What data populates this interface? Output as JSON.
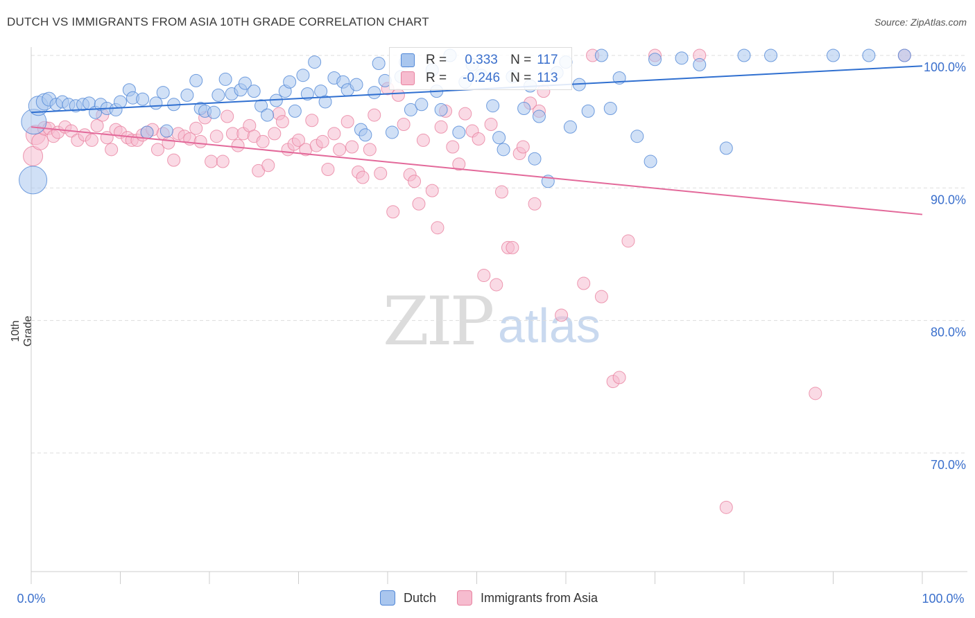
{
  "header": {
    "title": "DUTCH VS IMMIGRANTS FROM ASIA 10TH GRADE CORRELATION CHART",
    "source": "Source: ZipAtlas.com"
  },
  "legend": {
    "rows": [
      {
        "r_label": "R =",
        "r_value": "0.333",
        "n_label": "N =",
        "n_value": "117"
      },
      {
        "r_label": "R =",
        "r_value": "-0.246",
        "n_label": "N =",
        "n_value": "113"
      }
    ]
  },
  "bottom_legend": {
    "dutch": "Dutch",
    "asia": "Immigrants from Asia"
  },
  "watermark": {
    "zip": "ZIP",
    "atlas": "atlas"
  },
  "colors": {
    "dutch_fill": "#a9c6ee",
    "dutch_stroke": "#4f86d6",
    "dutch_line": "#2f6fd0",
    "asia_fill": "#f6bccf",
    "asia_stroke": "#e8819f",
    "asia_line": "#e3699a",
    "tick_label": "#3a6fcc",
    "grid": "#dddddd"
  },
  "chart_data": {
    "type": "scatter",
    "title": "DUTCH VS IMMIGRANTS FROM ASIA 10TH GRADE CORRELATION CHART",
    "ylabel": "10th Grade",
    "xlabel": "",
    "xlim": [
      0,
      100
    ],
    "ylim": [
      60.5,
      101.5
    ],
    "x_ticks": [
      "0.0%",
      "100.0%"
    ],
    "y_ticks": [
      {
        "value": 100,
        "label": "100.0%"
      },
      {
        "value": 90,
        "label": "90.0%"
      },
      {
        "value": 80,
        "label": "80.0%"
      },
      {
        "value": 70,
        "label": "70.0%"
      }
    ],
    "grid": true,
    "series": [
      {
        "name": "Dutch",
        "R": 0.333,
        "N": 117,
        "trend": [
          [
            0,
            95.7
          ],
          [
            100,
            99.2
          ]
        ],
        "points": [
          [
            0.3,
            95.0,
            18
          ],
          [
            0.2,
            90.6,
            20
          ],
          [
            0.8,
            96.2,
            14
          ],
          [
            1.5,
            96.5,
            12
          ],
          [
            2.0,
            96.7,
            10
          ],
          [
            2.8,
            96.3,
            9
          ],
          [
            3.5,
            96.5,
            9
          ],
          [
            4.2,
            96.3,
            9
          ],
          [
            5.0,
            96.2,
            9
          ],
          [
            5.8,
            96.3,
            9
          ],
          [
            6.5,
            96.4,
            9
          ],
          [
            7.2,
            95.7,
            9
          ],
          [
            7.8,
            96.3,
            9
          ],
          [
            8.5,
            96.0,
            9
          ],
          [
            9.5,
            95.9,
            9
          ],
          [
            10.0,
            96.5,
            9
          ],
          [
            11.0,
            97.4,
            9
          ],
          [
            11.4,
            96.8,
            9
          ],
          [
            12.5,
            96.7,
            9
          ],
          [
            13.0,
            94.2,
            9
          ],
          [
            14.0,
            96.4,
            9
          ],
          [
            14.8,
            97.2,
            9
          ],
          [
            15.2,
            94.3,
            9
          ],
          [
            16.0,
            96.3,
            9
          ],
          [
            17.5,
            97.0,
            9
          ],
          [
            18.5,
            98.1,
            9
          ],
          [
            19.0,
            96.0,
            9
          ],
          [
            19.5,
            95.8,
            9
          ],
          [
            20.5,
            95.7,
            9
          ],
          [
            21.0,
            97.0,
            9
          ],
          [
            21.8,
            98.2,
            9
          ],
          [
            22.5,
            97.1,
            9
          ],
          [
            23.5,
            97.4,
            9
          ],
          [
            24.0,
            97.9,
            9
          ],
          [
            25.0,
            97.3,
            9
          ],
          [
            25.8,
            96.2,
            9
          ],
          [
            26.5,
            95.5,
            9
          ],
          [
            27.5,
            96.6,
            9
          ],
          [
            28.5,
            97.3,
            9
          ],
          [
            29.0,
            98.0,
            9
          ],
          [
            29.6,
            95.8,
            9
          ],
          [
            30.5,
            98.5,
            9
          ],
          [
            31.0,
            97.1,
            9
          ],
          [
            31.8,
            99.5,
            9
          ],
          [
            32.5,
            97.3,
            9
          ],
          [
            33.0,
            96.5,
            9
          ],
          [
            34.0,
            98.3,
            9
          ],
          [
            35.0,
            98.0,
            9
          ],
          [
            35.5,
            97.4,
            9
          ],
          [
            36.5,
            97.8,
            9
          ],
          [
            37.0,
            94.4,
            9
          ],
          [
            37.5,
            94.0,
            9
          ],
          [
            38.5,
            97.2,
            9
          ],
          [
            39.0,
            99.4,
            9
          ],
          [
            39.7,
            98.1,
            9
          ],
          [
            40.5,
            94.2,
            9
          ],
          [
            41.5,
            98.4,
            9
          ],
          [
            42.0,
            99.5,
            9
          ],
          [
            42.6,
            95.9,
            9
          ],
          [
            43.8,
            96.3,
            9
          ],
          [
            45.0,
            98.9,
            9
          ],
          [
            45.5,
            97.3,
            9
          ],
          [
            46.0,
            95.9,
            9
          ],
          [
            47.0,
            100.0,
            9
          ],
          [
            48.0,
            94.2,
            9
          ],
          [
            48.7,
            98.0,
            9
          ],
          [
            49.5,
            99.3,
            9
          ],
          [
            50.5,
            98.5,
            9
          ],
          [
            51.8,
            96.2,
            9
          ],
          [
            52.5,
            93.8,
            9
          ],
          [
            53.0,
            92.9,
            9
          ],
          [
            54.0,
            98.4,
            9
          ],
          [
            55.3,
            96.0,
            9
          ],
          [
            56.0,
            97.7,
            9
          ],
          [
            56.5,
            92.2,
            9
          ],
          [
            57.0,
            95.4,
            9
          ],
          [
            58.0,
            90.5,
            9
          ],
          [
            59.0,
            98.7,
            9
          ],
          [
            60.0,
            99.5,
            9
          ],
          [
            60.5,
            94.6,
            9
          ],
          [
            61.5,
            97.8,
            9
          ],
          [
            62.5,
            95.8,
            9
          ],
          [
            64.0,
            100.0,
            9
          ],
          [
            65.0,
            96.0,
            9
          ],
          [
            66.0,
            98.3,
            9
          ],
          [
            68.0,
            93.9,
            9
          ],
          [
            69.5,
            92.0,
            9
          ],
          [
            70.0,
            99.7,
            9
          ],
          [
            73.0,
            99.8,
            9
          ],
          [
            75.0,
            99.3,
            9
          ],
          [
            78.0,
            93.0,
            9
          ],
          [
            80.0,
            100.0,
            9
          ],
          [
            83.0,
            100.0,
            9
          ],
          [
            90.0,
            100.0,
            9
          ],
          [
            94.0,
            100.0,
            9
          ],
          [
            98.0,
            100.0,
            9
          ]
        ]
      },
      {
        "name": "Immigrants from Asia",
        "R": -0.246,
        "N": 113,
        "trend": [
          [
            0,
            94.6
          ],
          [
            100,
            88.0
          ]
        ],
        "points": [
          [
            0.2,
            92.4,
            14
          ],
          [
            0.5,
            94.0,
            14
          ],
          [
            1.0,
            93.5,
            12
          ],
          [
            1.5,
            94.5,
            10
          ],
          [
            2.0,
            94.5,
            9
          ],
          [
            2.5,
            93.9,
            9
          ],
          [
            3.0,
            94.2,
            9
          ],
          [
            3.8,
            94.6,
            9
          ],
          [
            4.5,
            94.3,
            9
          ],
          [
            5.2,
            93.6,
            9
          ],
          [
            6.0,
            94.0,
            9
          ],
          [
            6.8,
            93.6,
            9
          ],
          [
            7.4,
            94.7,
            9
          ],
          [
            8.0,
            95.5,
            9
          ],
          [
            8.5,
            93.8,
            9
          ],
          [
            9.0,
            92.9,
            9
          ],
          [
            9.5,
            94.4,
            9
          ],
          [
            10.0,
            94.2,
            9
          ],
          [
            10.8,
            93.8,
            9
          ],
          [
            11.3,
            93.6,
            9
          ],
          [
            11.9,
            93.6,
            9
          ],
          [
            12.5,
            94.0,
            9
          ],
          [
            13.0,
            94.2,
            9
          ],
          [
            13.6,
            94.4,
            9
          ],
          [
            14.2,
            92.9,
            9
          ],
          [
            14.8,
            94.1,
            9
          ],
          [
            15.4,
            93.4,
            9
          ],
          [
            16.0,
            92.1,
            9
          ],
          [
            16.5,
            94.1,
            9
          ],
          [
            17.2,
            93.9,
            9
          ],
          [
            17.8,
            93.7,
            9
          ],
          [
            18.5,
            94.5,
            9
          ],
          [
            19.0,
            93.5,
            9
          ],
          [
            19.5,
            95.3,
            9
          ],
          [
            20.2,
            92.0,
            9
          ],
          [
            20.8,
            93.9,
            9
          ],
          [
            21.5,
            92.0,
            9
          ],
          [
            22.0,
            95.4,
            9
          ],
          [
            22.6,
            94.1,
            9
          ],
          [
            23.2,
            93.2,
            9
          ],
          [
            23.8,
            94.1,
            9
          ],
          [
            24.5,
            94.7,
            9
          ],
          [
            25.0,
            93.9,
            9
          ],
          [
            25.5,
            91.3,
            9
          ],
          [
            26.0,
            93.5,
            9
          ],
          [
            26.6,
            91.7,
            9
          ],
          [
            27.3,
            94.1,
            9
          ],
          [
            27.8,
            95.6,
            9
          ],
          [
            28.2,
            95.0,
            9
          ],
          [
            28.8,
            92.9,
            9
          ],
          [
            29.5,
            93.3,
            9
          ],
          [
            30.0,
            93.6,
            9
          ],
          [
            30.8,
            92.9,
            9
          ],
          [
            31.5,
            95.1,
            9
          ],
          [
            32.0,
            93.2,
            9
          ],
          [
            32.7,
            93.5,
            9
          ],
          [
            33.3,
            91.4,
            9
          ],
          [
            34.0,
            94.1,
            9
          ],
          [
            34.6,
            92.9,
            9
          ],
          [
            35.5,
            95.0,
            9
          ],
          [
            36.0,
            93.1,
            9
          ],
          [
            36.7,
            91.2,
            9
          ],
          [
            37.2,
            90.8,
            9
          ],
          [
            38.0,
            92.9,
            9
          ],
          [
            38.5,
            95.5,
            9
          ],
          [
            39.2,
            91.1,
            9
          ],
          [
            40.0,
            97.5,
            9
          ],
          [
            40.6,
            88.2,
            9
          ],
          [
            41.2,
            97.0,
            9
          ],
          [
            41.8,
            94.8,
            9
          ],
          [
            42.5,
            91.0,
            9
          ],
          [
            43.0,
            90.5,
            9
          ],
          [
            43.5,
            88.8,
            9
          ],
          [
            44.0,
            93.6,
            9
          ],
          [
            45.0,
            89.8,
            9
          ],
          [
            45.6,
            87.0,
            9
          ],
          [
            46.0,
            94.6,
            9
          ],
          [
            46.5,
            95.8,
            9
          ],
          [
            47.3,
            93.1,
            9
          ],
          [
            48.0,
            91.8,
            9
          ],
          [
            48.7,
            95.6,
            9
          ],
          [
            49.5,
            94.3,
            9
          ],
          [
            50.2,
            93.7,
            9
          ],
          [
            50.8,
            83.4,
            9
          ],
          [
            51.6,
            94.8,
            9
          ],
          [
            52.2,
            82.7,
            9
          ],
          [
            52.8,
            89.7,
            9
          ],
          [
            53.5,
            85.5,
            9
          ],
          [
            54.0,
            85.5,
            9
          ],
          [
            54.8,
            92.6,
            9
          ],
          [
            55.2,
            93.1,
            9
          ],
          [
            56.0,
            96.4,
            9
          ],
          [
            56.5,
            88.8,
            9
          ],
          [
            57.0,
            95.8,
            9
          ],
          [
            57.5,
            97.3,
            9
          ],
          [
            59.5,
            80.4,
            9
          ],
          [
            62.0,
            82.8,
            9
          ],
          [
            63.0,
            100.0,
            9
          ],
          [
            64.0,
            81.8,
            9
          ],
          [
            65.3,
            75.4,
            9
          ],
          [
            66.0,
            75.7,
            9
          ],
          [
            67.0,
            86.0,
            9
          ],
          [
            70.0,
            100.0,
            9
          ],
          [
            75.0,
            100.0,
            9
          ],
          [
            78.0,
            65.9,
            9
          ],
          [
            88.0,
            74.5,
            9
          ],
          [
            98.0,
            100.0,
            9
          ]
        ]
      }
    ]
  }
}
